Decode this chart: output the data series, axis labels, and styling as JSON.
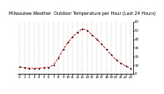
{
  "title": "Milwaukee Weather  Outdoor Temperature per Hour (Last 24 Hours)",
  "hours": [
    0,
    1,
    2,
    3,
    4,
    5,
    6,
    7,
    8,
    9,
    10,
    11,
    12,
    13,
    14,
    15,
    16,
    17,
    18,
    19,
    20,
    21,
    22,
    23
  ],
  "temps": [
    8,
    7,
    6.5,
    6,
    6.5,
    7,
    7.5,
    10,
    18,
    28,
    36,
    43,
    48,
    52,
    50,
    45,
    40,
    34,
    28,
    22,
    16,
    12,
    9,
    6
  ],
  "line_color": "#ff0000",
  "marker_color": "#000000",
  "bg_color": "#ffffff",
  "grid_color": "#888888",
  "ylim": [
    0,
    60
  ],
  "yticks": [
    0,
    10,
    20,
    30,
    40,
    50,
    60
  ],
  "xtick_labels": [
    "0",
    "1",
    "2",
    "3",
    "4",
    "5",
    "6",
    "7",
    "8",
    "9",
    "10",
    "11",
    "12",
    "13",
    "14",
    "15",
    "16",
    "17",
    "18",
    "19",
    "20",
    "21",
    "22",
    "23"
  ],
  "title_fontsize": 3.5,
  "tick_fontsize": 2.8,
  "line_width": 0.6,
  "marker_size": 1.5,
  "marker_edge_width": 0.5
}
